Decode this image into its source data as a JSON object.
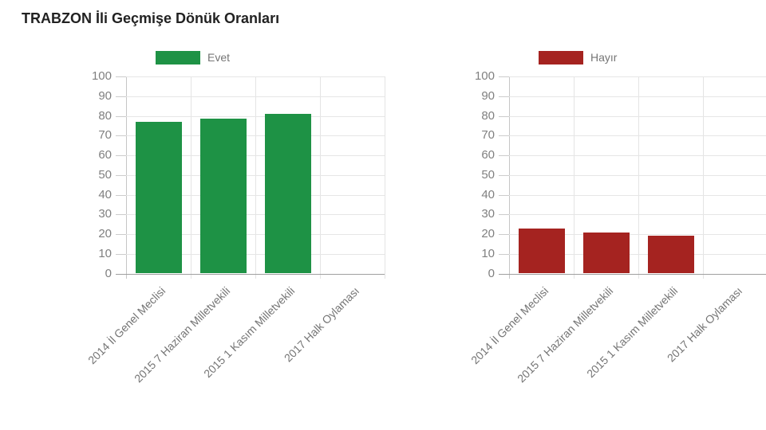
{
  "title": "TRABZON İli Geçmişe Dönük Oranları",
  "chart_data": {
    "type": "bar",
    "title": "TRABZON İli Geçmişe Dönük Oranları",
    "categories": [
      "2014 İl Genel Meclisi",
      "2015 7 Haziran Milletvekili",
      "2015 1 Kasım Milletvekili",
      "2017 Halk Oylaması"
    ],
    "series": [
      {
        "name": "Evet",
        "color": "#1e9245",
        "values": [
          77,
          78.7,
          81,
          0
        ]
      },
      {
        "name": "Hayır",
        "color": "#a52320",
        "values": [
          23,
          21,
          19.2,
          0
        ]
      }
    ],
    "xlabel": "",
    "ylabel": "",
    "ylim": [
      0,
      100
    ],
    "y_ticks": [
      0,
      10,
      20,
      30,
      40,
      50,
      60,
      70,
      80,
      90,
      100
    ],
    "grid": true,
    "legend_position": "top",
    "note": "rendered as two side-by-side charts, one per series; 2017 Halk Oylaması has no bar (value 0)"
  },
  "colors": {
    "evet": "#1e9245",
    "hayir": "#a52320",
    "axis_text": "#808080",
    "gridline": "#e6e6e6",
    "baseline": "#9f9f9f"
  }
}
